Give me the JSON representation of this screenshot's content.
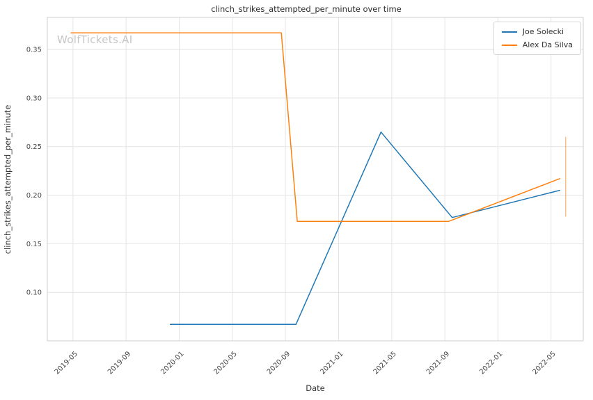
{
  "watermark": {
    "text": "WolfTickets.AI",
    "color": "#c6c6c6"
  },
  "chart_data": {
    "type": "line",
    "title": "clinch_strikes_attempted_per_minute over time",
    "xlabel": "Date",
    "ylabel": "clinch_strikes_attempted_per_minute",
    "legend_position": "upper right",
    "grid": true,
    "ylim": [
      0.05,
      0.383
    ],
    "xlim": [
      "2019-03-03",
      "2022-07-14"
    ],
    "y_ticks": [
      0.1,
      0.15,
      0.2,
      0.25,
      0.3,
      0.35
    ],
    "x_ticks": [
      {
        "date": "2019-05-01",
        "label": "2019-05"
      },
      {
        "date": "2019-09-01",
        "label": "2019-09"
      },
      {
        "date": "2020-01-01",
        "label": "2020-01"
      },
      {
        "date": "2020-05-01",
        "label": "2020-05"
      },
      {
        "date": "2020-09-01",
        "label": "2020-09"
      },
      {
        "date": "2021-01-01",
        "label": "2021-01"
      },
      {
        "date": "2021-05-01",
        "label": "2021-05"
      },
      {
        "date": "2021-09-01",
        "label": "2021-09"
      },
      {
        "date": "2022-01-01",
        "label": "2022-01"
      },
      {
        "date": "2022-05-01",
        "label": "2022-05"
      }
    ],
    "series": [
      {
        "name": "Joe Solecki",
        "color": "#1f77b4",
        "points": [
          {
            "date": "2019-12-11",
            "value": 0.067
          },
          {
            "date": "2020-09-25",
            "value": 0.067
          },
          {
            "date": "2021-04-07",
            "value": 0.265
          },
          {
            "date": "2021-09-18",
            "value": 0.177
          },
          {
            "date": "2022-05-21",
            "value": 0.205
          }
        ]
      },
      {
        "name": "Alex Da Silva",
        "color": "#ff7f0e",
        "points": [
          {
            "date": "2019-04-27",
            "value": 0.367
          },
          {
            "date": "2020-08-22",
            "value": 0.367
          },
          {
            "date": "2020-09-28",
            "value": 0.173
          },
          {
            "date": "2021-09-10",
            "value": 0.173
          },
          {
            "date": "2022-05-21",
            "value": 0.217
          }
        ],
        "extra_vertical_segment": {
          "date": "2022-06-04",
          "from": 0.26,
          "to": 0.178
        }
      }
    ]
  }
}
